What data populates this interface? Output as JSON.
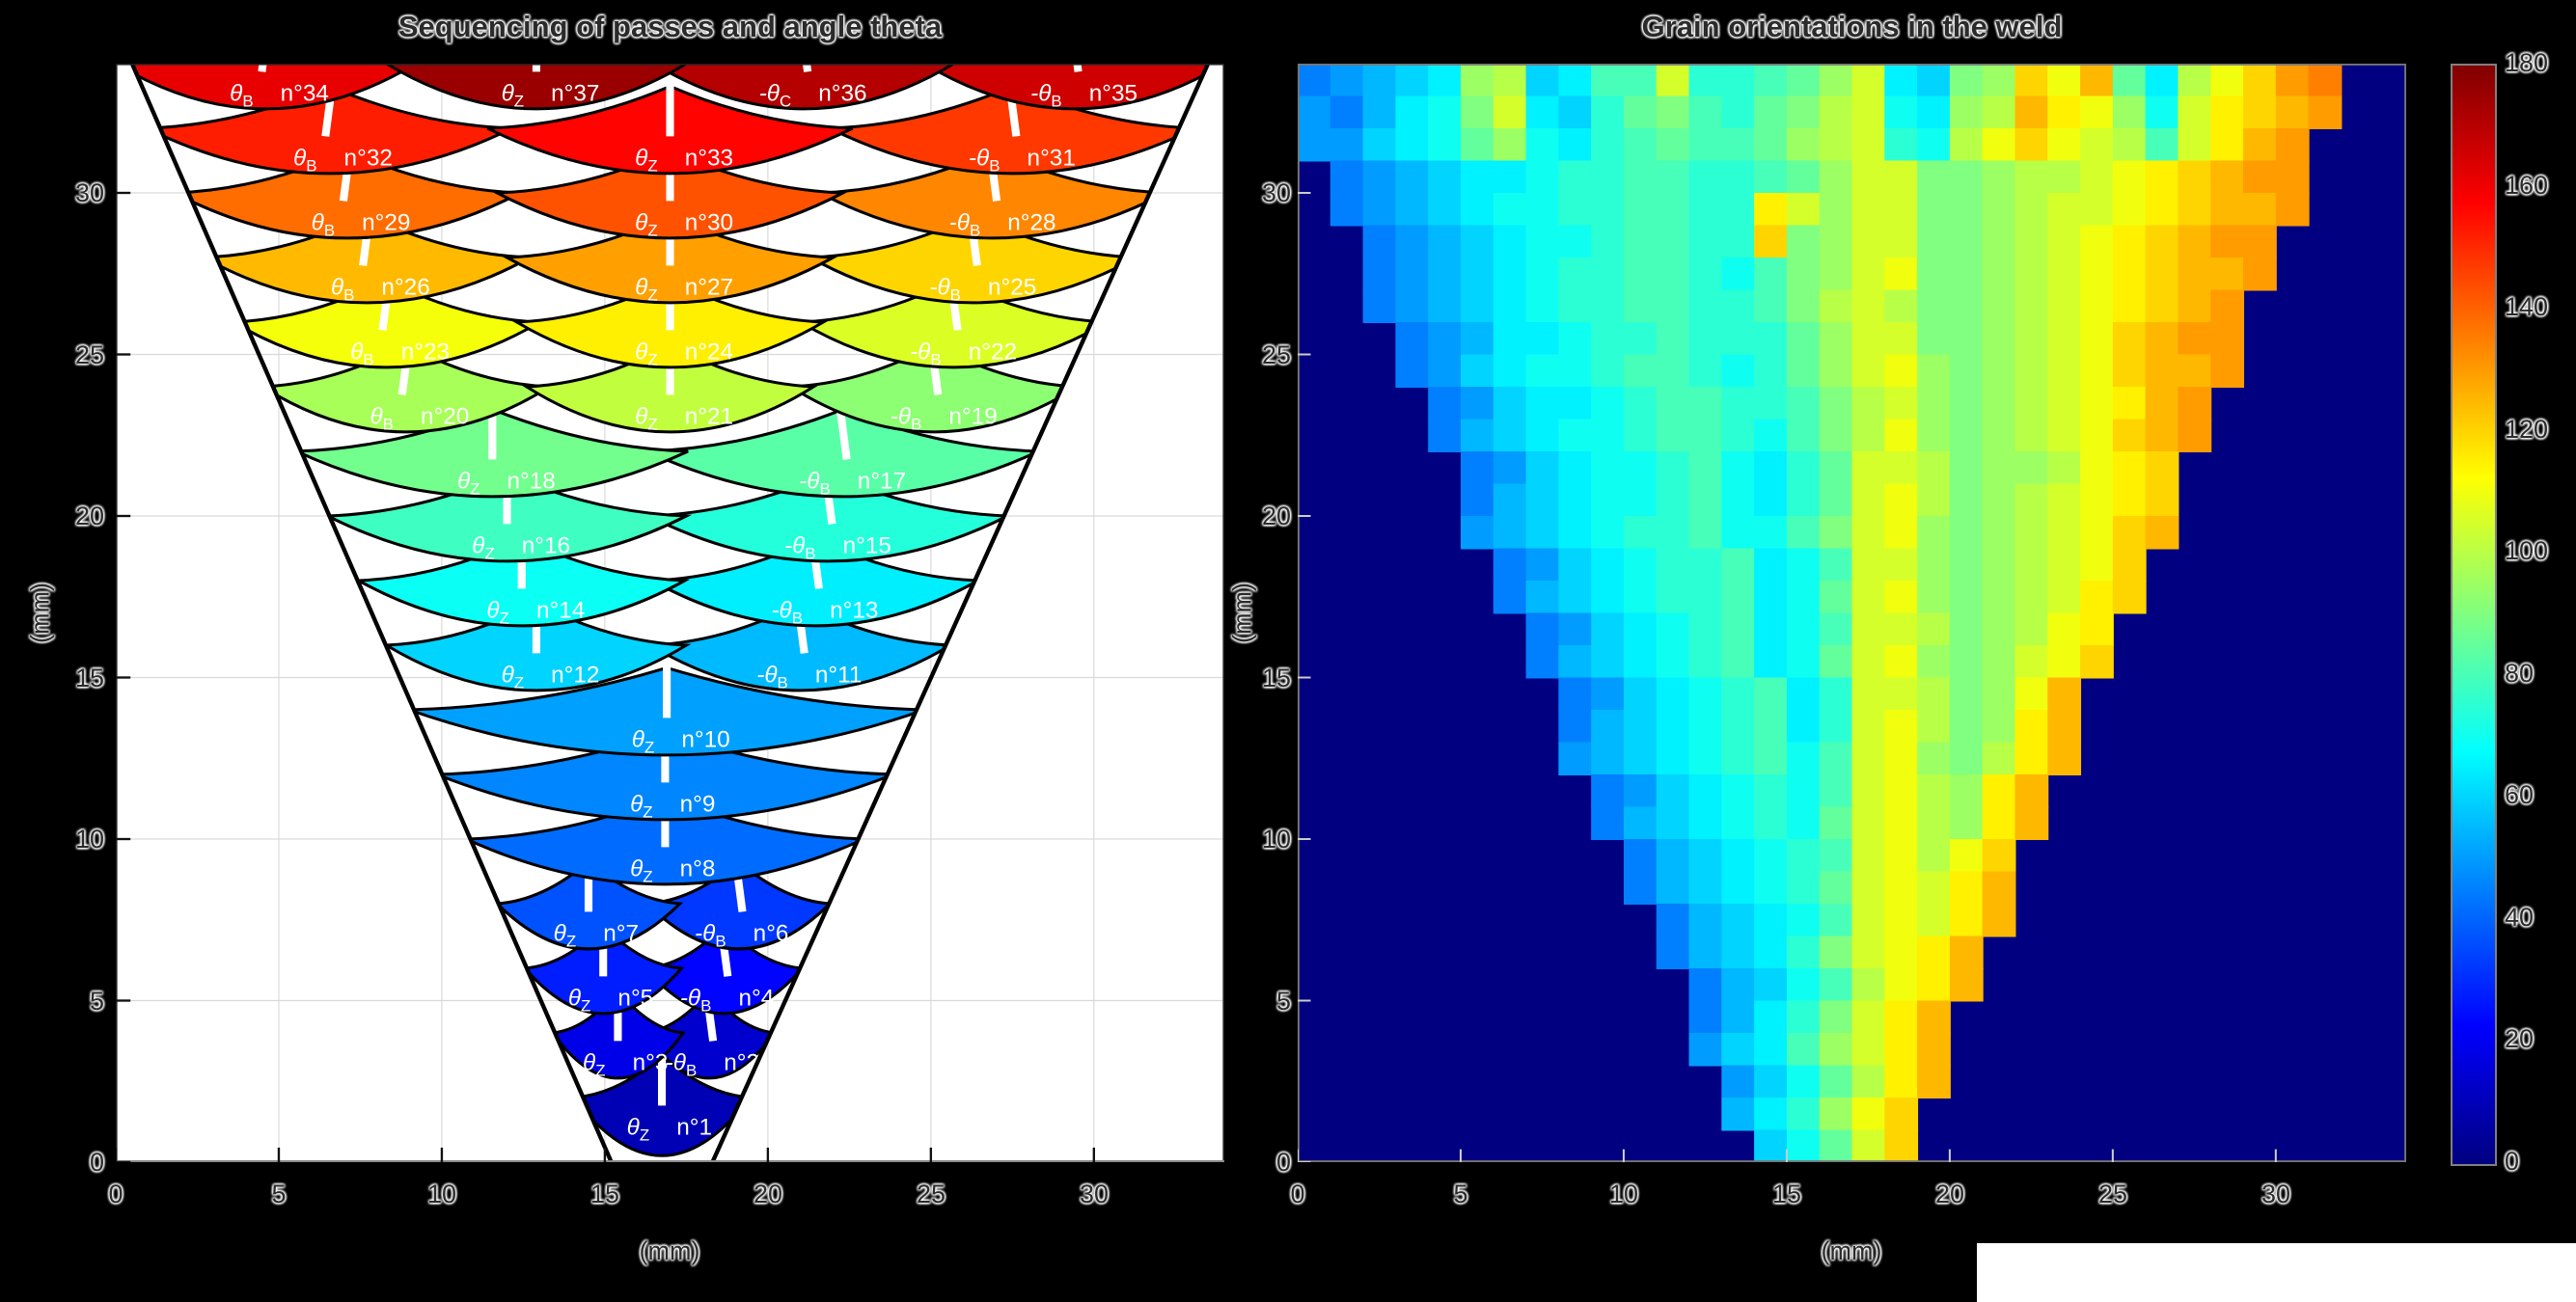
{
  "figure": {
    "background": "#000000",
    "plot_bg_left": "#ffffff",
    "plot_bg_right": "#000080"
  },
  "chart_data": [
    {
      "id": "passes",
      "type": "diagram",
      "title": "Sequencing of passes and angle theta",
      "xlabel": "(mm)",
      "ylabel": "(mm)",
      "xlim": [
        0,
        34
      ],
      "ylim": [
        0,
        34
      ],
      "xticks": [
        0,
        5,
        10,
        15,
        20,
        25,
        30
      ],
      "yticks": [
        0,
        5,
        10,
        15,
        20,
        25,
        30
      ],
      "grid": true,
      "colormap": "jet",
      "groove_outline": {
        "top_left": [
          0.5,
          34
        ],
        "top_right": [
          33.5,
          34
        ],
        "bottom_left": [
          15.2,
          0
        ],
        "bottom_right": [
          18.3,
          0
        ]
      },
      "passes": [
        {
          "n": 1,
          "angle": "θ_Z",
          "cx": 16.75,
          "y": 2,
          "w": 2.7
        },
        {
          "n": 2,
          "angle": "-θ_B",
          "cx": 18.2,
          "y": 4,
          "w": 2.0
        },
        {
          "n": 3,
          "angle": "θ_Z",
          "cx": 15.4,
          "y": 4,
          "w": 2.0
        },
        {
          "n": 4,
          "angle": "-θ_B",
          "cx": 18.65,
          "y": 6,
          "w": 2.4
        },
        {
          "n": 5,
          "angle": "θ_Z",
          "cx": 14.95,
          "y": 6,
          "w": 2.4
        },
        {
          "n": 6,
          "angle": "-θ_B",
          "cx": 19.1,
          "y": 8,
          "w": 2.8
        },
        {
          "n": 7,
          "angle": "θ_Z",
          "cx": 14.5,
          "y": 8,
          "w": 2.8
        },
        {
          "n": 8,
          "angle": "θ_Z",
          "cx": 16.85,
          "y": 10,
          "w": 6.1
        },
        {
          "n": 9,
          "angle": "θ_Z",
          "cx": 16.85,
          "y": 12,
          "w": 7.0
        },
        {
          "n": 10,
          "angle": "θ_Z",
          "cx": 16.9,
          "y": 14,
          "w": 7.9
        },
        {
          "n": 11,
          "angle": "-θ_B",
          "cx": 21.0,
          "y": 16,
          "w": 4.6
        },
        {
          "n": 12,
          "angle": "θ_Z",
          "cx": 12.9,
          "y": 16,
          "w": 4.6
        },
        {
          "n": 13,
          "angle": "-θ_B",
          "cx": 21.45,
          "y": 18,
          "w": 5.0
        },
        {
          "n": 14,
          "angle": "θ_Z",
          "cx": 12.45,
          "y": 18,
          "w": 5.0
        },
        {
          "n": 15,
          "angle": "-θ_B",
          "cx": 21.85,
          "y": 20,
          "w": 5.5
        },
        {
          "n": 16,
          "angle": "θ_Z",
          "cx": 12.0,
          "y": 20,
          "w": 5.5
        },
        {
          "n": 17,
          "angle": "-θ_B",
          "cx": 22.3,
          "y": 22,
          "w": 6.0
        },
        {
          "n": 18,
          "angle": "θ_Z",
          "cx": 11.55,
          "y": 22,
          "w": 6.0
        },
        {
          "n": 19,
          "angle": "-θ_B",
          "cx": 25.1,
          "y": 24,
          "w": 4.4
        },
        {
          "n": 20,
          "angle": "θ_B",
          "cx": 8.9,
          "y": 24,
          "w": 4.4
        },
        {
          "n": 21,
          "angle": "θ_Z",
          "cx": 17.0,
          "y": 24,
          "w": 4.4
        },
        {
          "n": 22,
          "angle": "-θ_B",
          "cx": 25.7,
          "y": 26,
          "w": 4.7
        },
        {
          "n": 23,
          "angle": "θ_B",
          "cx": 8.3,
          "y": 26,
          "w": 4.7
        },
        {
          "n": 24,
          "angle": "θ_Z",
          "cx": 17.0,
          "y": 26,
          "w": 4.7
        },
        {
          "n": 25,
          "angle": "-θ_B",
          "cx": 26.3,
          "y": 28,
          "w": 5.0
        },
        {
          "n": 26,
          "angle": "θ_B",
          "cx": 7.7,
          "y": 28,
          "w": 5.0
        },
        {
          "n": 27,
          "angle": "θ_Z",
          "cx": 17.0,
          "y": 28,
          "w": 5.0
        },
        {
          "n": 28,
          "angle": "-θ_B",
          "cx": 26.9,
          "y": 30,
          "w": 5.3
        },
        {
          "n": 29,
          "angle": "θ_B",
          "cx": 7.1,
          "y": 30,
          "w": 5.3
        },
        {
          "n": 30,
          "angle": "θ_Z",
          "cx": 17.0,
          "y": 30,
          "w": 5.3
        },
        {
          "n": 31,
          "angle": "-θ_B",
          "cx": 27.5,
          "y": 32,
          "w": 5.6
        },
        {
          "n": 32,
          "angle": "θ_B",
          "cx": 6.55,
          "y": 32,
          "w": 5.6
        },
        {
          "n": 33,
          "angle": "θ_Z",
          "cx": 17.0,
          "y": 32,
          "w": 5.6
        },
        {
          "n": 34,
          "angle": "θ_B",
          "cx": 4.6,
          "y": 34,
          "w": 4.6
        },
        {
          "n": 35,
          "angle": "-θ_B",
          "cx": 29.4,
          "y": 34,
          "w": 4.6
        },
        {
          "n": 36,
          "angle": "-θ_C",
          "cx": 21.1,
          "y": 34,
          "w": 4.6
        },
        {
          "n": 37,
          "angle": "θ_Z",
          "cx": 12.9,
          "y": 34,
          "w": 4.6
        }
      ]
    },
    {
      "id": "grain",
      "type": "heatmap",
      "title": "Grain orientations in the weld",
      "xlabel": "(mm)",
      "ylabel": "(mm)",
      "xlim": [
        0,
        34
      ],
      "ylim": [
        0,
        34
      ],
      "xticks": [
        0,
        5,
        10,
        15,
        20,
        25,
        30
      ],
      "yticks": [
        0,
        5,
        10,
        15,
        20,
        25,
        30
      ],
      "colorbar": {
        "vmin": 0,
        "vmax": 180,
        "ticks": [
          0,
          20,
          40,
          60,
          80,
          100,
          120,
          140,
          160,
          180
        ],
        "colormap": "jet"
      },
      "background_value": 0,
      "cell_mm": 1,
      "rows": [
        {
          "y": 33.5,
          "x0": 0,
          "v": [
            45,
            50,
            55,
            60,
            65,
            95,
            100,
            60,
            65,
            80,
            80,
            105,
            75,
            75,
            80,
            85,
            95,
            105,
            65,
            60,
            90,
            95,
            120,
            110,
            125,
            85,
            65,
            100,
            110,
            120,
            130,
            135
          ]
        },
        {
          "y": 32.5,
          "x0": 0,
          "v": [
            50,
            45,
            55,
            65,
            70,
            90,
            105,
            65,
            60,
            75,
            85,
            90,
            80,
            75,
            85,
            90,
            100,
            105,
            70,
            65,
            95,
            100,
            125,
            115,
            110,
            95,
            70,
            105,
            115,
            120,
            125,
            130
          ]
        },
        {
          "y": 31.5,
          "x0": 0,
          "v": [
            50,
            50,
            60,
            65,
            70,
            85,
            95,
            70,
            65,
            75,
            80,
            85,
            80,
            80,
            85,
            95,
            100,
            105,
            75,
            70,
            100,
            110,
            120,
            110,
            105,
            100,
            80,
            105,
            115,
            125,
            130
          ]
        },
        {
          "y": 30.5,
          "x0": 1,
          "v": [
            45,
            50,
            55,
            60,
            65,
            65,
            70,
            75,
            75,
            80,
            80,
            75,
            75,
            80,
            85,
            95,
            105,
            105,
            90,
            90,
            95,
            100,
            100,
            105,
            110,
            115,
            120,
            125,
            130,
            130
          ]
        },
        {
          "y": 29.5,
          "x0": 1,
          "v": [
            45,
            50,
            55,
            60,
            65,
            70,
            70,
            75,
            75,
            80,
            80,
            75,
            75,
            115,
            105,
            95,
            105,
            105,
            90,
            90,
            95,
            100,
            105,
            105,
            110,
            115,
            120,
            125,
            125,
            130
          ]
        },
        {
          "y": 28.5,
          "x0": 2,
          "v": [
            45,
            50,
            55,
            60,
            65,
            70,
            70,
            75,
            80,
            80,
            75,
            75,
            120,
            90,
            95,
            105,
            105,
            90,
            90,
            95,
            100,
            105,
            110,
            115,
            120,
            125,
            130,
            130
          ]
        },
        {
          "y": 27.5,
          "x0": 2,
          "v": [
            45,
            50,
            55,
            60,
            65,
            70,
            75,
            75,
            80,
            80,
            75,
            70,
            80,
            90,
            95,
            105,
            110,
            90,
            90,
            95,
            100,
            105,
            110,
            115,
            120,
            125,
            125,
            130
          ]
        },
        {
          "y": 26.5,
          "x0": 2,
          "v": [
            45,
            50,
            55,
            60,
            65,
            70,
            75,
            75,
            80,
            80,
            75,
            75,
            80,
            90,
            100,
            105,
            100,
            90,
            90,
            95,
            100,
            105,
            110,
            115,
            120,
            125,
            130
          ]
        },
        {
          "y": 25.5,
          "x0": 3,
          "v": [
            45,
            50,
            55,
            65,
            65,
            70,
            75,
            75,
            80,
            75,
            75,
            75,
            85,
            95,
            105,
            105,
            90,
            90,
            95,
            100,
            105,
            110,
            120,
            125,
            130,
            130
          ]
        },
        {
          "y": 24.5,
          "x0": 3,
          "v": [
            45,
            50,
            60,
            65,
            70,
            70,
            75,
            80,
            80,
            75,
            70,
            75,
            85,
            95,
            105,
            110,
            95,
            90,
            95,
            100,
            105,
            110,
            120,
            125,
            125,
            130
          ]
        },
        {
          "y": 23.5,
          "x0": 4,
          "v": [
            45,
            50,
            60,
            65,
            65,
            70,
            75,
            80,
            80,
            75,
            75,
            80,
            90,
            100,
            105,
            95,
            90,
            95,
            100,
            105,
            110,
            115,
            125,
            130
          ]
        },
        {
          "y": 22.5,
          "x0": 4,
          "v": [
            45,
            55,
            60,
            65,
            70,
            70,
            75,
            80,
            80,
            75,
            70,
            80,
            90,
            100,
            110,
            95,
            90,
            95,
            100,
            105,
            110,
            120,
            125,
            130
          ]
        },
        {
          "y": 21.5,
          "x0": 5,
          "v": [
            45,
            50,
            60,
            65,
            70,
            70,
            75,
            80,
            70,
            65,
            75,
            85,
            105,
            105,
            100,
            90,
            95,
            95,
            100,
            110,
            115,
            120
          ]
        },
        {
          "y": 20.5,
          "x0": 5,
          "v": [
            45,
            55,
            60,
            65,
            70,
            70,
            75,
            80,
            70,
            65,
            75,
            85,
            105,
            110,
            100,
            90,
            95,
            100,
            105,
            110,
            115,
            120
          ]
        },
        {
          "y": 19.5,
          "x0": 5,
          "v": [
            50,
            55,
            60,
            65,
            70,
            75,
            75,
            80,
            70,
            70,
            80,
            90,
            105,
            110,
            95,
            90,
            95,
            100,
            105,
            110,
            120,
            125
          ]
        },
        {
          "y": 18.5,
          "x0": 6,
          "v": [
            45,
            50,
            60,
            65,
            70,
            75,
            75,
            80,
            65,
            70,
            80,
            105,
            105,
            95,
            90,
            95,
            100,
            105,
            110,
            120
          ]
        },
        {
          "y": 17.5,
          "x0": 6,
          "v": [
            45,
            55,
            60,
            65,
            70,
            75,
            75,
            80,
            65,
            70,
            85,
            105,
            110,
            95,
            90,
            95,
            100,
            105,
            115,
            120
          ]
        },
        {
          "y": 16.5,
          "x0": 7,
          "v": [
            45,
            50,
            60,
            65,
            70,
            75,
            80,
            65,
            70,
            80,
            105,
            105,
            100,
            90,
            95,
            100,
            110,
            115
          ]
        },
        {
          "y": 15.5,
          "x0": 7,
          "v": [
            45,
            55,
            60,
            65,
            70,
            75,
            80,
            65,
            70,
            85,
            105,
            110,
            95,
            90,
            95,
            105,
            110,
            120
          ]
        },
        {
          "y": 14.5,
          "x0": 8,
          "v": [
            45,
            50,
            60,
            65,
            70,
            75,
            80,
            65,
            75,
            105,
            105,
            100,
            90,
            95,
            110,
            125
          ]
        },
        {
          "y": 13.5,
          "x0": 8,
          "v": [
            45,
            55,
            60,
            65,
            70,
            75,
            80,
            65,
            75,
            105,
            110,
            100,
            90,
            95,
            115,
            125
          ]
        },
        {
          "y": 12.5,
          "x0": 8,
          "v": [
            50,
            55,
            60,
            65,
            70,
            75,
            80,
            70,
            80,
            105,
            110,
            95,
            90,
            100,
            115,
            125
          ]
        },
        {
          "y": 11.5,
          "x0": 9,
          "v": [
            45,
            50,
            60,
            65,
            70,
            75,
            70,
            80,
            105,
            110,
            100,
            95,
            115,
            125
          ]
        },
        {
          "y": 10.5,
          "x0": 9,
          "v": [
            45,
            55,
            60,
            65,
            70,
            75,
            70,
            85,
            105,
            110,
            100,
            95,
            115,
            125
          ]
        },
        {
          "y": 9.5,
          "x0": 10,
          "v": [
            45,
            55,
            60,
            65,
            70,
            75,
            80,
            105,
            110,
            100,
            110,
            120
          ]
        },
        {
          "y": 8.5,
          "x0": 10,
          "v": [
            45,
            55,
            60,
            65,
            70,
            75,
            85,
            105,
            110,
            105,
            115,
            125
          ]
        },
        {
          "y": 7.5,
          "x0": 11,
          "v": [
            45,
            55,
            60,
            65,
            70,
            80,
            105,
            110,
            105,
            115,
            125
          ]
        },
        {
          "y": 6.5,
          "x0": 11,
          "v": [
            45,
            55,
            60,
            65,
            75,
            90,
            105,
            110,
            115,
            125
          ]
        },
        {
          "y": 5.5,
          "x0": 12,
          "v": [
            45,
            55,
            60,
            70,
            80,
            100,
            110,
            115,
            125
          ]
        },
        {
          "y": 4.5,
          "x0": 12,
          "v": [
            45,
            55,
            65,
            75,
            90,
            105,
            115,
            125
          ]
        },
        {
          "y": 3.5,
          "x0": 12,
          "v": [
            50,
            60,
            65,
            80,
            95,
            105,
            115,
            125
          ]
        },
        {
          "y": 2.5,
          "x0": 13,
          "v": [
            50,
            60,
            70,
            85,
            100,
            115,
            125
          ]
        },
        {
          "y": 1.5,
          "x0": 13,
          "v": [
            55,
            65,
            75,
            95,
            110,
            120
          ]
        },
        {
          "y": 0.5,
          "x0": 14,
          "v": [
            60,
            70,
            85,
            105,
            120
          ]
        }
      ]
    }
  ]
}
